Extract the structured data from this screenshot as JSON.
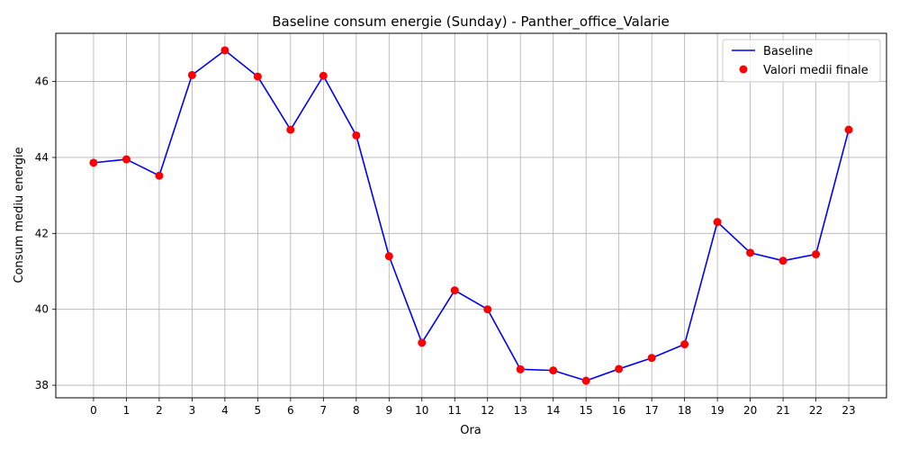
{
  "chart_data": {
    "type": "line",
    "title": "Baseline consum energie (Sunday) - Panther_office_Valarie",
    "xlabel": "Ora",
    "ylabel": "Consum mediu energie",
    "x": [
      0,
      1,
      2,
      3,
      4,
      5,
      6,
      7,
      8,
      9,
      10,
      11,
      12,
      13,
      14,
      15,
      16,
      17,
      18,
      19,
      20,
      21,
      22,
      23
    ],
    "series": [
      {
        "name": "Baseline",
        "kind": "line",
        "color": "#0000ff",
        "values": [
          43.86,
          43.95,
          43.52,
          46.17,
          46.82,
          46.13,
          44.73,
          46.15,
          44.58,
          41.4,
          39.12,
          40.5,
          40.0,
          38.42,
          38.39,
          38.12,
          38.43,
          38.72,
          39.08,
          42.3,
          41.49,
          41.28,
          41.45,
          44.73
        ]
      },
      {
        "name": "Valori medii finale",
        "kind": "scatter",
        "color": "#ff0000",
        "values": [
          43.86,
          43.95,
          43.52,
          46.17,
          46.82,
          46.13,
          44.73,
          46.15,
          44.58,
          41.4,
          39.12,
          40.5,
          40.0,
          38.42,
          38.39,
          38.12,
          38.43,
          38.72,
          39.08,
          42.3,
          41.49,
          41.28,
          41.45,
          44.73
        ]
      }
    ],
    "xlim": [
      -1.15,
      24.15
    ],
    "ylim": [
      37.67,
      47.27
    ],
    "yticks": [
      38,
      40,
      42,
      44,
      46
    ],
    "grid": true,
    "legend_position": "top-right"
  }
}
